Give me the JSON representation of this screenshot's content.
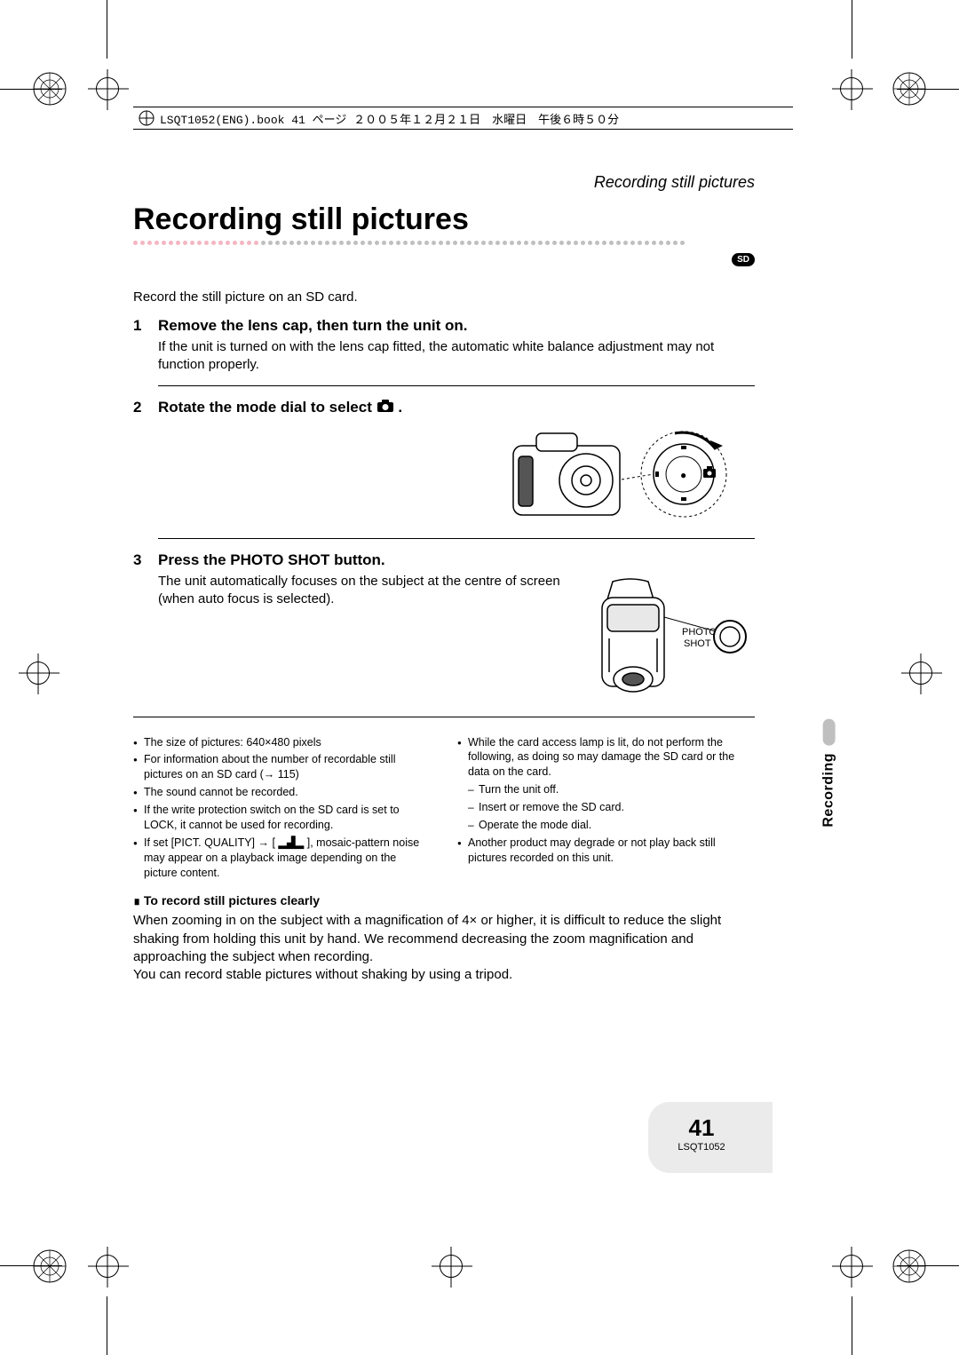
{
  "header_bar": "LSQT1052(ENG).book  41 ページ  ２００５年１２月２１日　水曜日　午後６時５０分",
  "running_head": "Recording still pictures",
  "title": "Recording still pictures",
  "sd_badge": "SD",
  "intro": "Record the still picture on an SD card.",
  "steps": {
    "s1": {
      "num": "1",
      "title": "Remove the lens cap, then turn the unit on.",
      "body": "If the unit is turned on with the lens cap fitted, the automatic white balance adjustment may not function properly."
    },
    "s2": {
      "num": "2",
      "title_prefix": "Rotate the mode dial to select ",
      "title_suffix": " ."
    },
    "s3": {
      "num": "3",
      "title": "Press the PHOTO SHOT button.",
      "body": "The unit automatically focuses on the subject at the centre of screen (when auto focus is selected).",
      "button_label_1": "PHOTO",
      "button_label_2": "SHOT"
    }
  },
  "notes_left": [
    "The size of pictures: 640×480 pixels",
    "For information about the number of recordable still pictures on an SD card (→ 115)",
    "The sound cannot be recorded.",
    "If the write protection switch on the SD card is set to LOCK, it cannot be used for recording.",
    "If set [PICT. QUALITY] → [ ▂▟▂ ], mosaic-pattern noise may appear on a playback image depending on the picture content."
  ],
  "notes_right_lead": "While the card access lamp is lit, do not perform the following, as doing so may damage the SD card or the data on the card.",
  "notes_right_sub": [
    "Turn the unit off.",
    "Insert or remove the SD card.",
    "Operate the mode dial."
  ],
  "notes_right_tail": "Another product may degrade or not play back still pictures recorded on this unit.",
  "subhead": "To record still pictures clearly",
  "para1": "When zooming in on the subject with a magnification of 4× or higher, it is difficult to reduce the slight shaking from holding this unit by hand. We recommend decreasing the zoom magnification and approaching the subject when recording.",
  "para2": "You can record stable pictures without shaking by using a tripod.",
  "side_tab": "Recording",
  "page_number": "41",
  "doc_id": "LSQT1052",
  "colors": {
    "dot_pink": "#f4b6c2",
    "dot_grey": "#bfbfbf",
    "footer_bg": "#ebebeb"
  }
}
